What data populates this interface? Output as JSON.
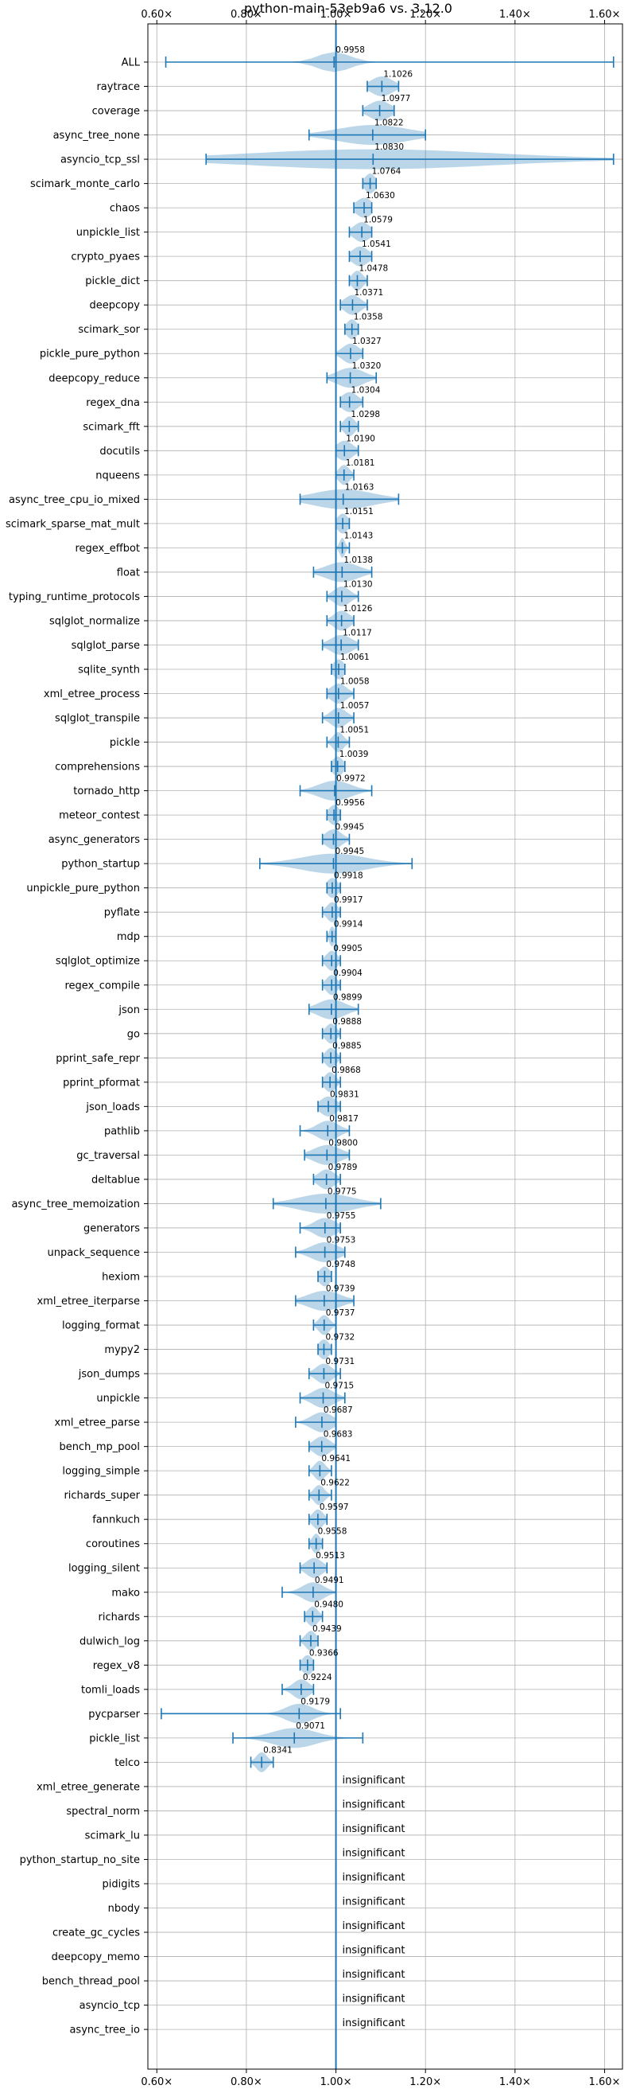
{
  "chart_data": {
    "type": "violin",
    "title": "python-main-53eb9a6 vs. 3.12.0",
    "xlim": [
      0.58,
      1.64
    ],
    "x_ticks": [
      0.6,
      0.8,
      1.0,
      1.2,
      1.4,
      1.6
    ],
    "x_tick_labels": [
      "0.60×",
      "0.80×",
      "1.00×",
      "1.20×",
      "1.40×",
      "1.60×"
    ],
    "reference_line": 1.0,
    "grid": true,
    "insignificant_label": "insignificant",
    "benchmarks": [
      {
        "name": "ALL",
        "value": 0.9958,
        "label": "0.9958",
        "min": 0.62,
        "max": 1.62,
        "spread": 0.06
      },
      {
        "name": "raytrace",
        "value": 1.1026,
        "label": "1.1026",
        "min": 1.07,
        "max": 1.14,
        "spread": 0.04
      },
      {
        "name": "coverage",
        "value": 1.0977,
        "label": "1.0977",
        "min": 1.06,
        "max": 1.13,
        "spread": 0.04
      },
      {
        "name": "async_tree_none",
        "value": 1.0822,
        "label": "1.0822",
        "min": 0.94,
        "max": 1.2,
        "spread": 0.13
      },
      {
        "name": "asyncio_tcp_ssl",
        "value": 1.083,
        "label": "1.0830",
        "min": 0.71,
        "max": 1.62,
        "spread": 0.45
      },
      {
        "name": "scimark_monte_carlo",
        "value": 1.0764,
        "label": "1.0764",
        "min": 1.06,
        "max": 1.09,
        "spread": 0.02
      },
      {
        "name": "chaos",
        "value": 1.063,
        "label": "1.0630",
        "min": 1.04,
        "max": 1.08,
        "spread": 0.03
      },
      {
        "name": "unpickle_list",
        "value": 1.0579,
        "label": "1.0579",
        "min": 1.03,
        "max": 1.08,
        "spread": 0.03
      },
      {
        "name": "crypto_pyaes",
        "value": 1.0541,
        "label": "1.0541",
        "min": 1.03,
        "max": 1.08,
        "spread": 0.03
      },
      {
        "name": "pickle_dict",
        "value": 1.0478,
        "label": "1.0478",
        "min": 1.03,
        "max": 1.07,
        "spread": 0.02
      },
      {
        "name": "deepcopy",
        "value": 1.0371,
        "label": "1.0371",
        "min": 1.01,
        "max": 1.07,
        "spread": 0.03
      },
      {
        "name": "scimark_sor",
        "value": 1.0358,
        "label": "1.0358",
        "min": 1.02,
        "max": 1.05,
        "spread": 0.02
      },
      {
        "name": "pickle_pure_python",
        "value": 1.0327,
        "label": "1.0327",
        "min": 1.0,
        "max": 1.06,
        "spread": 0.03
      },
      {
        "name": "deepcopy_reduce",
        "value": 1.032,
        "label": "1.0320",
        "min": 0.98,
        "max": 1.09,
        "spread": 0.05
      },
      {
        "name": "regex_dna",
        "value": 1.0304,
        "label": "1.0304",
        "min": 1.01,
        "max": 1.06,
        "spread": 0.03
      },
      {
        "name": "scimark_fft",
        "value": 1.0298,
        "label": "1.0298",
        "min": 1.01,
        "max": 1.05,
        "spread": 0.02
      },
      {
        "name": "docutils",
        "value": 1.019,
        "label": "1.0190",
        "min": 1.0,
        "max": 1.05,
        "spread": 0.03
      },
      {
        "name": "nqueens",
        "value": 1.0181,
        "label": "1.0181",
        "min": 1.0,
        "max": 1.04,
        "spread": 0.02
      },
      {
        "name": "async_tree_cpu_io_mixed",
        "value": 1.0163,
        "label": "1.0163",
        "min": 0.92,
        "max": 1.14,
        "spread": 0.11
      },
      {
        "name": "scimark_sparse_mat_mult",
        "value": 1.0151,
        "label": "1.0151",
        "min": 1.0,
        "max": 1.03,
        "spread": 0.02
      },
      {
        "name": "regex_effbot",
        "value": 1.0143,
        "label": "1.0143",
        "min": 1.0,
        "max": 1.03,
        "spread": 0.01
      },
      {
        "name": "float",
        "value": 1.0138,
        "label": "1.0138",
        "min": 0.95,
        "max": 1.08,
        "spread": 0.06
      },
      {
        "name": "typing_runtime_protocols",
        "value": 1.013,
        "label": "1.0130",
        "min": 0.98,
        "max": 1.05,
        "spread": 0.03
      },
      {
        "name": "sqlglot_normalize",
        "value": 1.0126,
        "label": "1.0126",
        "min": 0.98,
        "max": 1.04,
        "spread": 0.03
      },
      {
        "name": "sqlglot_parse",
        "value": 1.0117,
        "label": "1.0117",
        "min": 0.97,
        "max": 1.05,
        "spread": 0.04
      },
      {
        "name": "sqlite_synth",
        "value": 1.0061,
        "label": "1.0061",
        "min": 0.99,
        "max": 1.02,
        "spread": 0.02
      },
      {
        "name": "xml_etree_process",
        "value": 1.0058,
        "label": "1.0058",
        "min": 0.98,
        "max": 1.04,
        "spread": 0.03
      },
      {
        "name": "sqlglot_transpile",
        "value": 1.0057,
        "label": "1.0057",
        "min": 0.97,
        "max": 1.04,
        "spread": 0.03
      },
      {
        "name": "pickle",
        "value": 1.0051,
        "label": "1.0051",
        "min": 0.98,
        "max": 1.03,
        "spread": 0.02
      },
      {
        "name": "comprehensions",
        "value": 1.0039,
        "label": "1.0039",
        "min": 0.99,
        "max": 1.02,
        "spread": 0.02
      },
      {
        "name": "tornado_http",
        "value": 0.9972,
        "label": "0.9972",
        "min": 0.92,
        "max": 1.08,
        "spread": 0.06
      },
      {
        "name": "meteor_contest",
        "value": 0.9956,
        "label": "0.9956",
        "min": 0.98,
        "max": 1.01,
        "spread": 0.02
      },
      {
        "name": "async_generators",
        "value": 0.9945,
        "label": "0.9945",
        "min": 0.97,
        "max": 1.03,
        "spread": 0.03
      },
      {
        "name": "python_startup",
        "value": 0.9945,
        "label": "0.9945",
        "min": 0.83,
        "max": 1.17,
        "spread": 0.12
      },
      {
        "name": "unpickle_pure_python",
        "value": 0.9918,
        "label": "0.9918",
        "min": 0.98,
        "max": 1.01,
        "spread": 0.02
      },
      {
        "name": "pyflate",
        "value": 0.9917,
        "label": "0.9917",
        "min": 0.97,
        "max": 1.01,
        "spread": 0.02
      },
      {
        "name": "mdp",
        "value": 0.9914,
        "label": "0.9914",
        "min": 0.98,
        "max": 1.0,
        "spread": 0.01
      },
      {
        "name": "sqlglot_optimize",
        "value": 0.9905,
        "label": "0.9905",
        "min": 0.97,
        "max": 1.01,
        "spread": 0.02
      },
      {
        "name": "regex_compile",
        "value": 0.9904,
        "label": "0.9904",
        "min": 0.97,
        "max": 1.01,
        "spread": 0.02
      },
      {
        "name": "json",
        "value": 0.9899,
        "label": "0.9899",
        "min": 0.94,
        "max": 1.05,
        "spread": 0.05
      },
      {
        "name": "go",
        "value": 0.9888,
        "label": "0.9888",
        "min": 0.97,
        "max": 1.01,
        "spread": 0.02
      },
      {
        "name": "pprint_safe_repr",
        "value": 0.9885,
        "label": "0.9885",
        "min": 0.97,
        "max": 1.01,
        "spread": 0.02
      },
      {
        "name": "pprint_pformat",
        "value": 0.9868,
        "label": "0.9868",
        "min": 0.97,
        "max": 1.01,
        "spread": 0.02
      },
      {
        "name": "json_loads",
        "value": 0.9831,
        "label": "0.9831",
        "min": 0.96,
        "max": 1.01,
        "spread": 0.03
      },
      {
        "name": "pathlib",
        "value": 0.9817,
        "label": "0.9817",
        "min": 0.92,
        "max": 1.03,
        "spread": 0.04
      },
      {
        "name": "gc_traversal",
        "value": 0.98,
        "label": "0.9800",
        "min": 0.93,
        "max": 1.03,
        "spread": 0.05
      },
      {
        "name": "deltablue",
        "value": 0.9789,
        "label": "0.9789",
        "min": 0.95,
        "max": 1.01,
        "spread": 0.03
      },
      {
        "name": "async_tree_memoization",
        "value": 0.9775,
        "label": "0.9775",
        "min": 0.86,
        "max": 1.1,
        "spread": 0.1
      },
      {
        "name": "generators",
        "value": 0.9755,
        "label": "0.9755",
        "min": 0.92,
        "max": 1.01,
        "spread": 0.04
      },
      {
        "name": "unpack_sequence",
        "value": 0.9753,
        "label": "0.9753",
        "min": 0.91,
        "max": 1.02,
        "spread": 0.05
      },
      {
        "name": "hexiom",
        "value": 0.9748,
        "label": "0.9748",
        "min": 0.96,
        "max": 0.99,
        "spread": 0.02
      },
      {
        "name": "xml_etree_iterparse",
        "value": 0.9739,
        "label": "0.9739",
        "min": 0.91,
        "max": 1.04,
        "spread": 0.06
      },
      {
        "name": "logging_format",
        "value": 0.9737,
        "label": "0.9737",
        "min": 0.95,
        "max": 1.0,
        "spread": 0.02
      },
      {
        "name": "mypy2",
        "value": 0.9732,
        "label": "0.9732",
        "min": 0.96,
        "max": 0.99,
        "spread": 0.02
      },
      {
        "name": "json_dumps",
        "value": 0.9731,
        "label": "0.9731",
        "min": 0.94,
        "max": 1.01,
        "spread": 0.03
      },
      {
        "name": "unpickle",
        "value": 0.9715,
        "label": "0.9715",
        "min": 0.92,
        "max": 1.02,
        "spread": 0.04
      },
      {
        "name": "xml_etree_parse",
        "value": 0.9687,
        "label": "0.9687",
        "min": 0.91,
        "max": 1.0,
        "spread": 0.04
      },
      {
        "name": "bench_mp_pool",
        "value": 0.9683,
        "label": "0.9683",
        "min": 0.94,
        "max": 1.0,
        "spread": 0.03
      },
      {
        "name": "logging_simple",
        "value": 0.9641,
        "label": "0.9641",
        "min": 0.94,
        "max": 0.99,
        "spread": 0.02
      },
      {
        "name": "richards_super",
        "value": 0.9622,
        "label": "0.9622",
        "min": 0.94,
        "max": 0.99,
        "spread": 0.02
      },
      {
        "name": "fannkuch",
        "value": 0.9597,
        "label": "0.9597",
        "min": 0.94,
        "max": 0.98,
        "spread": 0.02
      },
      {
        "name": "coroutines",
        "value": 0.9558,
        "label": "0.9558",
        "min": 0.94,
        "max": 0.97,
        "spread": 0.015
      },
      {
        "name": "logging_silent",
        "value": 0.9513,
        "label": "0.9513",
        "min": 0.92,
        "max": 0.98,
        "spread": 0.03
      },
      {
        "name": "mako",
        "value": 0.9491,
        "label": "0.9491",
        "min": 0.88,
        "max": 1.0,
        "spread": 0.04
      },
      {
        "name": "richards",
        "value": 0.948,
        "label": "0.9480",
        "min": 0.93,
        "max": 0.97,
        "spread": 0.02
      },
      {
        "name": "dulwich_log",
        "value": 0.9439,
        "label": "0.9439",
        "min": 0.92,
        "max": 0.96,
        "spread": 0.02
      },
      {
        "name": "regex_v8",
        "value": 0.9366,
        "label": "0.9366",
        "min": 0.92,
        "max": 0.95,
        "spread": 0.02
      },
      {
        "name": "tomli_loads",
        "value": 0.9224,
        "label": "0.9224",
        "min": 0.88,
        "max": 0.95,
        "spread": 0.03
      },
      {
        "name": "pycparser",
        "value": 0.9179,
        "label": "0.9179",
        "min": 0.61,
        "max": 1.01,
        "spread": 0.05
      },
      {
        "name": "pickle_list",
        "value": 0.9071,
        "label": "0.9071",
        "min": 0.77,
        "max": 1.06,
        "spread": 0.08
      },
      {
        "name": "telco",
        "value": 0.8341,
        "label": "0.8341",
        "min": 0.81,
        "max": 0.86,
        "spread": 0.02
      },
      {
        "name": "xml_etree_generate",
        "insignificant": true
      },
      {
        "name": "spectral_norm",
        "insignificant": true
      },
      {
        "name": "scimark_lu",
        "insignificant": true
      },
      {
        "name": "python_startup_no_site",
        "insignificant": true
      },
      {
        "name": "pidigits",
        "insignificant": true
      },
      {
        "name": "nbody",
        "insignificant": true
      },
      {
        "name": "create_gc_cycles",
        "insignificant": true
      },
      {
        "name": "deepcopy_memo",
        "insignificant": true
      },
      {
        "name": "bench_thread_pool",
        "insignificant": true
      },
      {
        "name": "asyncio_tcp",
        "insignificant": true
      },
      {
        "name": "async_tree_io",
        "insignificant": true
      }
    ],
    "colors": {
      "violin_fill": "#1f77b4",
      "violin_opacity": 0.3,
      "stat_line": "#1f77b4",
      "grid": "#b0b0b0",
      "axis": "#000000",
      "text": "#000000"
    }
  }
}
